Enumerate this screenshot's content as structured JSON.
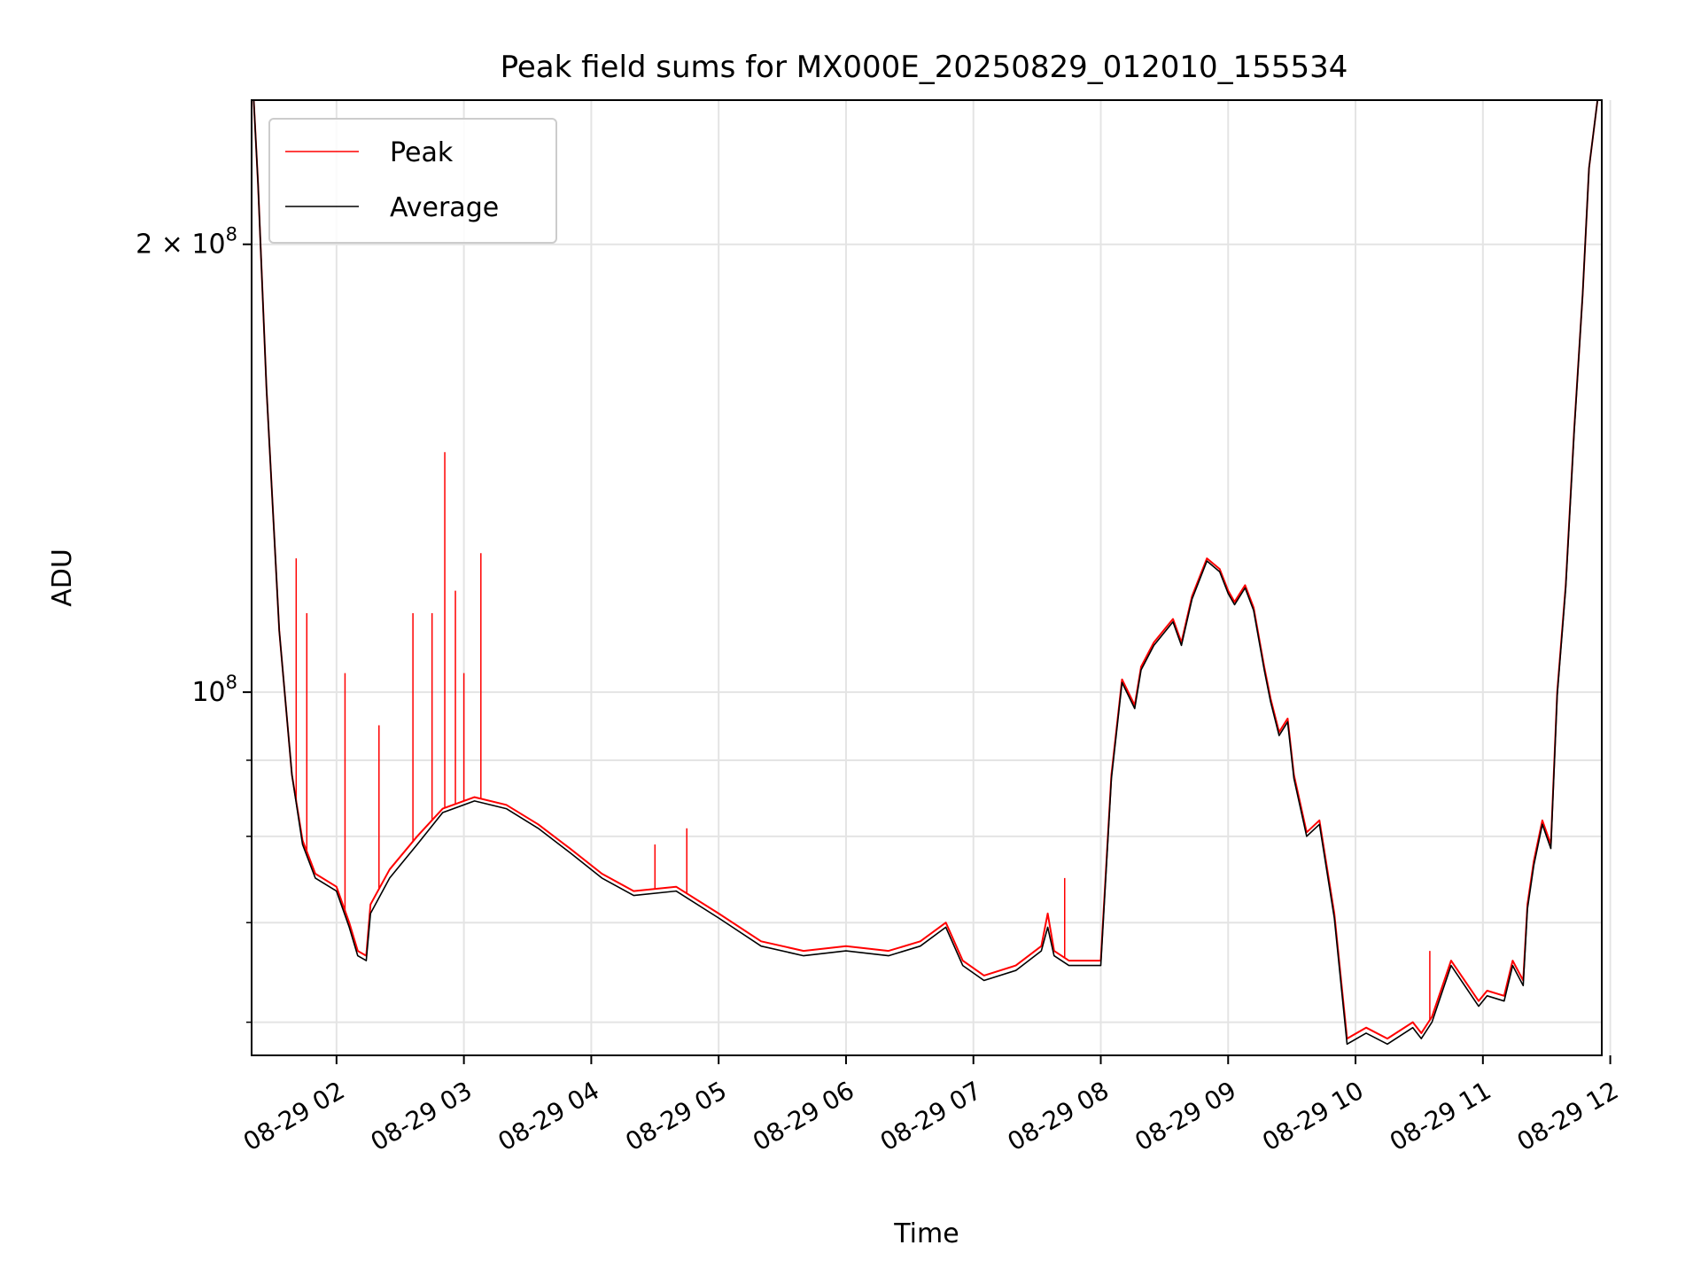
{
  "chart_data": {
    "type": "line",
    "title": "Peak field sums for MX000E_20250829_012010_155534",
    "xlabel": "Time",
    "ylabel": "ADU",
    "y_scale": "log",
    "ylim": [
      57000000,
      250000000
    ],
    "xlim": [
      "2025-08-29 01:20",
      "2025-08-29 11:56"
    ],
    "grid": true,
    "legend": "top-left",
    "x_ticks": [
      "08-29 02",
      "08-29 03",
      "08-29 04",
      "08-29 05",
      "08-29 06",
      "08-29 07",
      "08-29 08",
      "08-29 09",
      "08-29 10",
      "08-29 11",
      "08-29 12"
    ],
    "x_tick_times": [
      "2025-08-29 02:00",
      "2025-08-29 03:00",
      "2025-08-29 04:00",
      "2025-08-29 05:00",
      "2025-08-29 06:00",
      "2025-08-29 07:00",
      "2025-08-29 08:00",
      "2025-08-29 09:00",
      "2025-08-29 10:00",
      "2025-08-29 11:00",
      "2025-08-29 12:00"
    ],
    "y_ticks": [
      {
        "value": 100000000,
        "base": "10",
        "exp": "8",
        "coef": ""
      },
      {
        "value": 200000000,
        "base": "10",
        "exp": "8",
        "coef": "2 × "
      }
    ],
    "y_minor_ticks": [
      60000000,
      70000000,
      80000000,
      90000000
    ],
    "series": [
      {
        "name": "Peak",
        "color": "#ff0000",
        "x": [
          "2025-08-29 01:21",
          "2025-08-29 01:23",
          "2025-08-29 01:27",
          "2025-08-29 01:33",
          "2025-08-29 01:39",
          "2025-08-29 01:44",
          "2025-08-29 01:50",
          "2025-08-29 02:00",
          "2025-08-29 02:06",
          "2025-08-29 02:10",
          "2025-08-29 02:14",
          "2025-08-29 02:16",
          "2025-08-29 02:25",
          "2025-08-29 02:38",
          "2025-08-29 02:50",
          "2025-08-29 03:05",
          "2025-08-29 03:20",
          "2025-08-29 03:35",
          "2025-08-29 03:50",
          "2025-08-29 04:05",
          "2025-08-29 04:20",
          "2025-08-29 04:40",
          "2025-08-29 05:00",
          "2025-08-29 05:20",
          "2025-08-29 05:40",
          "2025-08-29 06:00",
          "2025-08-29 06:20",
          "2025-08-29 06:35",
          "2025-08-29 06:47",
          "2025-08-29 06:55",
          "2025-08-29 07:05",
          "2025-08-29 07:20",
          "2025-08-29 07:32",
          "2025-08-29 07:35",
          "2025-08-29 07:38",
          "2025-08-29 07:45",
          "2025-08-29 08:00",
          "2025-08-29 08:05",
          "2025-08-29 08:10",
          "2025-08-29 08:16",
          "2025-08-29 08:19",
          "2025-08-29 08:25",
          "2025-08-29 08:34",
          "2025-08-29 08:38",
          "2025-08-29 08:43",
          "2025-08-29 08:50",
          "2025-08-29 08:56",
          "2025-08-29 09:00",
          "2025-08-29 09:03",
          "2025-08-29 09:08",
          "2025-08-29 09:12",
          "2025-08-29 09:17",
          "2025-08-29 09:20",
          "2025-08-29 09:24",
          "2025-08-29 09:28",
          "2025-08-29 09:31",
          "2025-08-29 09:37",
          "2025-08-29 09:43",
          "2025-08-29 09:50",
          "2025-08-29 09:56",
          "2025-08-29 10:05",
          "2025-08-29 10:15",
          "2025-08-29 10:27",
          "2025-08-29 10:31",
          "2025-08-29 10:36",
          "2025-08-29 10:45",
          "2025-08-29 10:58",
          "2025-08-29 11:02",
          "2025-08-29 11:10",
          "2025-08-29 11:14",
          "2025-08-29 11:19",
          "2025-08-29 11:21",
          "2025-08-29 11:24",
          "2025-08-29 11:28",
          "2025-08-29 11:32",
          "2025-08-29 11:35",
          "2025-08-29 11:39",
          "2025-08-29 11:43",
          "2025-08-29 11:47",
          "2025-08-29 11:50",
          "2025-08-29 11:54",
          "2025-08-29 11:56"
        ],
        "values": [
          250000000,
          220000000,
          160000000,
          110000000,
          88000000,
          79500000,
          75500000,
          74000000,
          70000000,
          67000000,
          66500000,
          72000000,
          76000000,
          80000000,
          83500000,
          85000000,
          84000000,
          81500000,
          78500000,
          75500000,
          73500000,
          74000000,
          71000000,
          68000000,
          67000000,
          67500000,
          67000000,
          68000000,
          70000000,
          66000000,
          64500000,
          65500000,
          67500000,
          71000000,
          67000000,
          66000000,
          66000000,
          88000000,
          102000000,
          98000000,
          104000000,
          108000000,
          112000000,
          108000000,
          116000000,
          123000000,
          121000000,
          117000000,
          115000000,
          118000000,
          114000000,
          104000000,
          99000000,
          94000000,
          96000000,
          88000000,
          80500000,
          82000000,
          71000000,
          58500000,
          59500000,
          58500000,
          60000000,
          59000000,
          60500000,
          66000000,
          62000000,
          63000000,
          62500000,
          66000000,
          64000000,
          72000000,
          77000000,
          82000000,
          79000000,
          100000000,
          118000000,
          150000000,
          185000000,
          225000000,
          250000000,
          250000000
        ],
        "spikes": [
          {
            "x": "2025-08-29 01:41",
            "value": 123000000
          },
          {
            "x": "2025-08-29 01:46",
            "value": 113000000
          },
          {
            "x": "2025-08-29 02:04",
            "value": 103000000
          },
          {
            "x": "2025-08-29 02:20",
            "value": 95000000
          },
          {
            "x": "2025-08-29 02:36",
            "value": 113000000
          },
          {
            "x": "2025-08-29 02:45",
            "value": 113000000
          },
          {
            "x": "2025-08-29 02:51",
            "value": 145000000
          },
          {
            "x": "2025-08-29 02:56",
            "value": 117000000
          },
          {
            "x": "2025-08-29 03:00",
            "value": 103000000
          },
          {
            "x": "2025-08-29 03:08",
            "value": 124000000
          },
          {
            "x": "2025-08-29 04:30",
            "value": 79000000
          },
          {
            "x": "2025-08-29 04:45",
            "value": 81000000
          },
          {
            "x": "2025-08-29 07:43",
            "value": 75000000
          },
          {
            "x": "2025-08-29 10:35",
            "value": 67000000
          }
        ]
      },
      {
        "name": "Average",
        "color": "#000000",
        "x": [
          "2025-08-29 01:21",
          "2025-08-29 01:23",
          "2025-08-29 01:27",
          "2025-08-29 01:33",
          "2025-08-29 01:39",
          "2025-08-29 01:44",
          "2025-08-29 01:50",
          "2025-08-29 02:00",
          "2025-08-29 02:06",
          "2025-08-29 02:10",
          "2025-08-29 02:14",
          "2025-08-29 02:16",
          "2025-08-29 02:25",
          "2025-08-29 02:38",
          "2025-08-29 02:50",
          "2025-08-29 03:05",
          "2025-08-29 03:20",
          "2025-08-29 03:35",
          "2025-08-29 03:50",
          "2025-08-29 04:05",
          "2025-08-29 04:20",
          "2025-08-29 04:40",
          "2025-08-29 05:00",
          "2025-08-29 05:20",
          "2025-08-29 05:40",
          "2025-08-29 06:00",
          "2025-08-29 06:20",
          "2025-08-29 06:35",
          "2025-08-29 06:47",
          "2025-08-29 06:55",
          "2025-08-29 07:05",
          "2025-08-29 07:20",
          "2025-08-29 07:32",
          "2025-08-29 07:35",
          "2025-08-29 07:38",
          "2025-08-29 07:45",
          "2025-08-29 08:00",
          "2025-08-29 08:05",
          "2025-08-29 08:10",
          "2025-08-29 08:16",
          "2025-08-29 08:19",
          "2025-08-29 08:25",
          "2025-08-29 08:34",
          "2025-08-29 08:38",
          "2025-08-29 08:43",
          "2025-08-29 08:50",
          "2025-08-29 08:56",
          "2025-08-29 09:00",
          "2025-08-29 09:03",
          "2025-08-29 09:08",
          "2025-08-29 09:12",
          "2025-08-29 09:17",
          "2025-08-29 09:20",
          "2025-08-29 09:24",
          "2025-08-29 09:28",
          "2025-08-29 09:31",
          "2025-08-29 09:37",
          "2025-08-29 09:43",
          "2025-08-29 09:50",
          "2025-08-29 09:56",
          "2025-08-29 10:05",
          "2025-08-29 10:15",
          "2025-08-29 10:27",
          "2025-08-29 10:31",
          "2025-08-29 10:36",
          "2025-08-29 10:45",
          "2025-08-29 10:58",
          "2025-08-29 11:02",
          "2025-08-29 11:10",
          "2025-08-29 11:14",
          "2025-08-29 11:19",
          "2025-08-29 11:21",
          "2025-08-29 11:24",
          "2025-08-29 11:28",
          "2025-08-29 11:32",
          "2025-08-29 11:35",
          "2025-08-29 11:39",
          "2025-08-29 11:43",
          "2025-08-29 11:47",
          "2025-08-29 11:50",
          "2025-08-29 11:54",
          "2025-08-29 11:56"
        ],
        "values": [
          250000000,
          220000000,
          160000000,
          110000000,
          88000000,
          79000000,
          75000000,
          73500000,
          69500000,
          66500000,
          66000000,
          71000000,
          75000000,
          79000000,
          83000000,
          84500000,
          83500000,
          81000000,
          78000000,
          75000000,
          73000000,
          73500000,
          70500000,
          67500000,
          66500000,
          67000000,
          66500000,
          67500000,
          69500000,
          65500000,
          64000000,
          65000000,
          67000000,
          69500000,
          66500000,
          65500000,
          65500000,
          87500000,
          101500000,
          97500000,
          103500000,
          107500000,
          111500000,
          107500000,
          115500000,
          122500000,
          120500000,
          116500000,
          114500000,
          117500000,
          113500000,
          103500000,
          98500000,
          93500000,
          95500000,
          87500000,
          80000000,
          81500000,
          70500000,
          58000000,
          59000000,
          58000000,
          59500000,
          58500000,
          60000000,
          65500000,
          61500000,
          62500000,
          62000000,
          65500000,
          63500000,
          71500000,
          76500000,
          81500000,
          78500000,
          99500000,
          117500000,
          149500000,
          185000000,
          225000000,
          250000000,
          250000000
        ]
      }
    ]
  }
}
